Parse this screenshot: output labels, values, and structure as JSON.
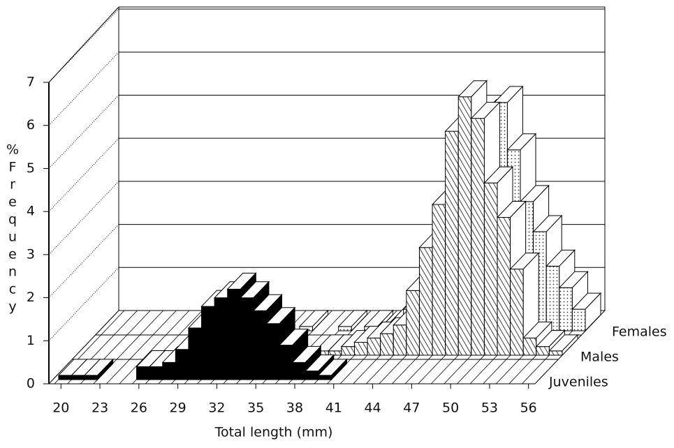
{
  "chart_data": {
    "type": "bar3d",
    "y_axis_label": [
      "%",
      "F",
      "r",
      "e",
      "q",
      "u",
      "e",
      "n",
      "c",
      "y"
    ],
    "x_axis_label": "Total length (mm)",
    "x": [
      20,
      21,
      22,
      23,
      24,
      25,
      26,
      27,
      28,
      29,
      30,
      31,
      32,
      33,
      34,
      35,
      36,
      37,
      38,
      39,
      40,
      41,
      42,
      43,
      44,
      45,
      46,
      47,
      48,
      49,
      50,
      51,
      52,
      53,
      54,
      55,
      56
    ],
    "xlim": [
      19.5,
      56.5
    ],
    "xticks": [
      20,
      23,
      26,
      29,
      32,
      35,
      38,
      41,
      44,
      47,
      50,
      53,
      56
    ],
    "ylim": [
      0,
      7
    ],
    "yticks": [
      0,
      1,
      2,
      3,
      4,
      5,
      6,
      7
    ],
    "grid": true,
    "series": [
      {
        "name": "Juveniles",
        "color": "#000000",
        "values": [
          0.1,
          0.1,
          0.1,
          0,
          0,
          0,
          0.3,
          0.3,
          0.4,
          0.7,
          1.2,
          1.7,
          1.9,
          2.1,
          1.9,
          1.6,
          1.3,
          0.8,
          0.4,
          0.2,
          0.1,
          0,
          0,
          0,
          0,
          0,
          0,
          0,
          0,
          0,
          0,
          0,
          0,
          0,
          0,
          0,
          0
        ]
      },
      {
        "name": "Males",
        "color": "#555555",
        "values": [
          0,
          0,
          0,
          0,
          0,
          0,
          0,
          0,
          0,
          0,
          0,
          0,
          0,
          0,
          0,
          0,
          0,
          0,
          0.1,
          0.1,
          0.2,
          0.3,
          0.4,
          0.5,
          0.7,
          1.5,
          2.5,
          3.5,
          5.2,
          6.0,
          5.5,
          4.0,
          3.2,
          2.0,
          0.4,
          0.2,
          0.1
        ]
      },
      {
        "name": "Females",
        "color": "#999999",
        "values": [
          0,
          0,
          0,
          0,
          0,
          0,
          0,
          0,
          0,
          0,
          0,
          0,
          0,
          0,
          0,
          0.1,
          0,
          0,
          0.1,
          0,
          0.1,
          0,
          0.2,
          0.5,
          1.0,
          1.5,
          2.3,
          3.4,
          4.0,
          5.0,
          5.3,
          4.2,
          3.0,
          2.3,
          1.5,
          1.0,
          0.5
        ]
      }
    ]
  }
}
